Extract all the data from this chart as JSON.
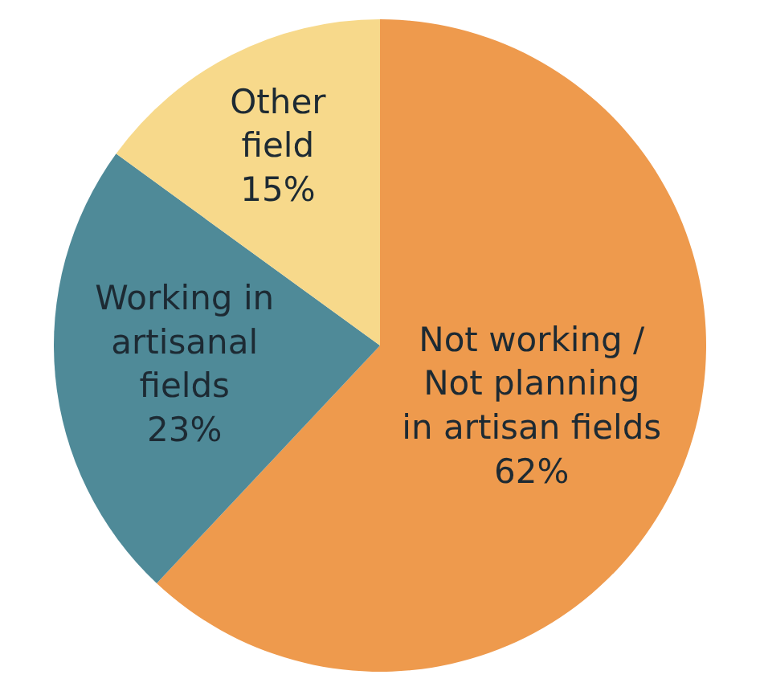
{
  "chart_data": {
    "type": "pie",
    "categories": [
      "Not working /\nNot planning\nin artisan fields",
      "Working in\nartisanal\nfields",
      "Other\nfield"
    ],
    "values": [
      62,
      23,
      15
    ],
    "value_labels": [
      "62%",
      "23%",
      "15%"
    ],
    "colors": [
      "#ee9a4d",
      "#4f8a98",
      "#f7d98b"
    ],
    "legend": false
  }
}
